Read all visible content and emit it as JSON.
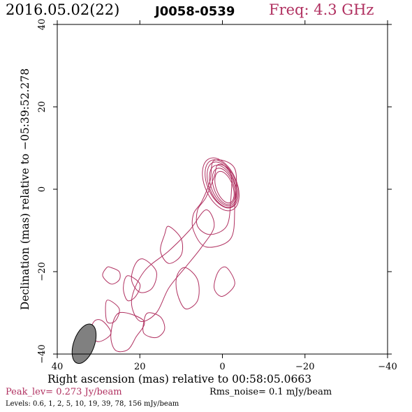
{
  "header": {
    "date": "2016.05.02(22)",
    "source": "J0058-0539",
    "freq": "Freq: 4.3 GHz"
  },
  "footer": {
    "peak": "Peak_lev=  0.273 Jy/beam",
    "rms": "Rms_noise=  0.1 mJy/beam",
    "levels": "Levels: 0.6,   1,   2,   5,  10,  19,  39,  78, 156 mJy/beam"
  },
  "colors": {
    "contour": "#b03060",
    "beam": "#808080",
    "axis": "#000000"
  },
  "chart_data": {
    "type": "contour",
    "xlabel": "Right ascension (mas) relative to 00:58:05.0663",
    "ylabel": "Declination (mas) relative to −05:39:52.278",
    "xlim": [
      40,
      -40
    ],
    "ylim": [
      -40,
      40
    ],
    "x_ticks": [
      "40",
      "20",
      "0",
      "−20",
      "−40"
    ],
    "y_ticks": [
      "−40",
      "−20",
      "0",
      "20",
      "40"
    ],
    "x_tick_values": [
      40,
      20,
      0,
      -20,
      -40
    ],
    "y_tick_values": [
      -40,
      -20,
      0,
      20,
      40
    ],
    "levels_mJy": [
      0.6,
      1,
      2,
      5,
      10,
      19,
      39,
      78,
      156
    ],
    "peak_Jy_per_beam": 0.273,
    "rms_mJy_per_beam": 0.1,
    "beam": {
      "x": 33.5,
      "y": -37.5,
      "major": 5,
      "minor": 2.5,
      "pa_deg": 20
    },
    "core_contours": [
      {
        "cx": -0.5,
        "cy": 0.5,
        "rx": 2.0,
        "ry": 4.0,
        "rot": -20
      },
      {
        "cx": -0.3,
        "cy": 0.7,
        "rx": 2.4,
        "ry": 4.6,
        "rot": -20
      },
      {
        "cx": -0.1,
        "cy": 0.9,
        "rx": 2.8,
        "ry": 5.2,
        "rot": -22
      },
      {
        "cx": 0.1,
        "cy": 1.1,
        "rx": 3.1,
        "ry": 5.8,
        "rot": -22
      },
      {
        "cx": 0.2,
        "cy": 1.3,
        "rx": 3.4,
        "ry": 6.2,
        "rot": -24
      },
      {
        "cx": 0.4,
        "cy": 1.2,
        "rx": 3.8,
        "ry": 6.8,
        "rot": -24
      }
    ],
    "jet_contours": [
      [
        [
          2,
          7
        ],
        [
          -3,
          5
        ],
        [
          -3,
          -4
        ],
        [
          -2,
          -12
        ],
        [
          4,
          -14
        ],
        [
          7,
          -10
        ],
        [
          7,
          -6
        ],
        [
          5,
          -3
        ],
        [
          3,
          2
        ]
      ],
      [
        [
          1,
          6
        ],
        [
          -2,
          4
        ],
        [
          -2,
          -3
        ],
        [
          -1,
          -9
        ],
        [
          3,
          -11
        ],
        [
          6,
          -9
        ],
        [
          6,
          -5
        ],
        [
          4,
          -2
        ],
        [
          2,
          3
        ]
      ],
      [
        [
          4,
          -5
        ],
        [
          8,
          -10
        ],
        [
          13,
          -15
        ],
        [
          19,
          -20
        ],
        [
          22,
          -27
        ],
        [
          20,
          -32
        ],
        [
          16,
          -30
        ],
        [
          13,
          -24
        ],
        [
          9,
          -19
        ],
        [
          5,
          -14
        ],
        [
          2,
          -9
        ]
      ],
      [
        [
          13,
          -9
        ],
        [
          10,
          -12
        ],
        [
          10,
          -16
        ],
        [
          13,
          -18
        ],
        [
          15,
          -15
        ],
        [
          14,
          -11
        ]
      ],
      [
        [
          9,
          -19
        ],
        [
          6,
          -22
        ],
        [
          6,
          -27
        ],
        [
          9,
          -29
        ],
        [
          11,
          -25
        ],
        [
          11,
          -21
        ]
      ],
      [
        [
          -1,
          -19
        ],
        [
          -3,
          -23
        ],
        [
          0,
          -26
        ],
        [
          2,
          -24
        ],
        [
          1,
          -20
        ]
      ],
      [
        [
          19,
          -17
        ],
        [
          16,
          -20
        ],
        [
          17,
          -24
        ],
        [
          20,
          -25
        ],
        [
          22,
          -22
        ],
        [
          21,
          -18
        ]
      ],
      [
        [
          23,
          -21
        ],
        [
          20,
          -23
        ],
        [
          21,
          -26
        ],
        [
          23,
          -27
        ],
        [
          24,
          -24
        ]
      ],
      [
        [
          27,
          -19
        ],
        [
          25,
          -20
        ],
        [
          25,
          -22
        ],
        [
          27,
          -23
        ],
        [
          29,
          -21
        ],
        [
          28,
          -19
        ]
      ],
      [
        [
          18,
          -30
        ],
        [
          15,
          -31
        ],
        [
          14,
          -34
        ],
        [
          16,
          -36
        ],
        [
          19,
          -35
        ],
        [
          19,
          -32
        ]
      ],
      [
        [
          28,
          -27
        ],
        [
          25,
          -29
        ],
        [
          26,
          -32
        ],
        [
          28,
          -32
        ]
      ],
      [
        [
          19,
          -32
        ],
        [
          21,
          -36
        ],
        [
          23,
          -39
        ],
        [
          26,
          -39
        ],
        [
          27,
          -35
        ],
        [
          25,
          -30
        ]
      ],
      [
        [
          29,
          -32
        ],
        [
          27,
          -35
        ],
        [
          30,
          -37
        ],
        [
          32,
          -35
        ],
        [
          31,
          -32
        ]
      ]
    ]
  }
}
